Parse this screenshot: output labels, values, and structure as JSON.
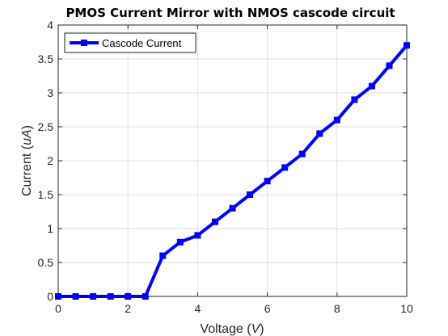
{
  "chart_data": {
    "type": "line",
    "title": "PMOS Current Mirror with NMOS cascode circuit",
    "xlabel": {
      "text": "Voltage (",
      "italic": "V",
      "tail": ")"
    },
    "ylabel": {
      "text": "Current (",
      "italic": "uA",
      "tail": ")"
    },
    "xlim": [
      0,
      10
    ],
    "ylim": [
      0,
      4
    ],
    "xticks": [
      "0",
      "2",
      "4",
      "6",
      "8",
      "10"
    ],
    "yticks": [
      "0",
      "0.5",
      "1",
      "1.5",
      "2",
      "2.5",
      "3",
      "3.5",
      "4"
    ],
    "grid": true,
    "legend_position": "top-left",
    "series": [
      {
        "name": "Cascode Current",
        "color": "#0000ff",
        "marker": "square",
        "x": [
          0,
          0.5,
          1,
          1.5,
          2,
          2.5,
          3,
          3.5,
          4,
          4.5,
          5,
          5.5,
          6,
          6.5,
          7,
          7.5,
          8,
          8.5,
          9,
          9.5,
          10
        ],
        "y": [
          0,
          0,
          0,
          0,
          0,
          0,
          0.6,
          0.8,
          0.9,
          1.1,
          1.3,
          1.5,
          1.7,
          1.9,
          2.1,
          2.4,
          2.6,
          2.9,
          3.1,
          3.4,
          3.7
        ]
      }
    ]
  }
}
